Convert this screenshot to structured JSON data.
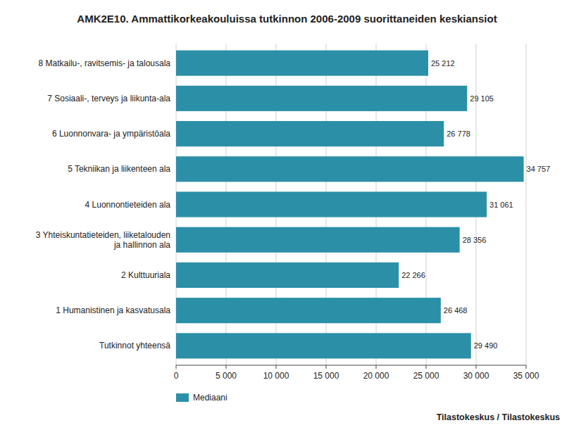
{
  "chart_data": {
    "type": "bar",
    "orientation": "horizontal",
    "title": "AMK2E10. Ammattikorkeakouluissa tutkinnon 2006-2009 suorittaneiden keskiansiot",
    "categories": [
      "Tutkinnot yhteensä",
      "1 Humanistinen ja kasvatusala",
      "2 Kulttuuriala",
      "3 Yhteiskuntatieteiden, liiketalouden\nja hallinnon ala",
      "4 Luonnontieteiden ala",
      "5 Tekniikan ja liikenteen ala",
      "6 Luonnonvara- ja ympäristöala",
      "7 Sosiaali-, terveys ja liikunta-ala",
      "8 Matkailu-, ravitsemis- ja talousala"
    ],
    "series": [
      {
        "name": "Mediaani",
        "color": "#2b8fa8",
        "values": [
          29490,
          26468,
          22266,
          28356,
          31061,
          34757,
          26778,
          29105,
          25212
        ],
        "value_labels": [
          "29 490",
          "26 468",
          "22 266",
          "28 356",
          "31 061",
          "34 757",
          "26 778",
          "29 105",
          "25 212"
        ]
      }
    ],
    "data_labels": true,
    "xlim": [
      0,
      35000
    ],
    "xticks": [
      0,
      {
        "value": 5000,
        "label": "5 000"
      },
      {
        "value": 10000,
        "label": "10 000"
      },
      {
        "value": 15000,
        "label": "15 000"
      },
      {
        "value": 20000,
        "label": "20 000"
      },
      {
        "value": 25000,
        "label": "25 000"
      },
      {
        "value": 30000,
        "label": "30 000"
      },
      {
        "value": 35000,
        "label": "35 000"
      }
    ],
    "grid": true,
    "legend": "lower left",
    "annotations": [
      "Tilastokeskus / Tilastokeskus"
    ]
  }
}
